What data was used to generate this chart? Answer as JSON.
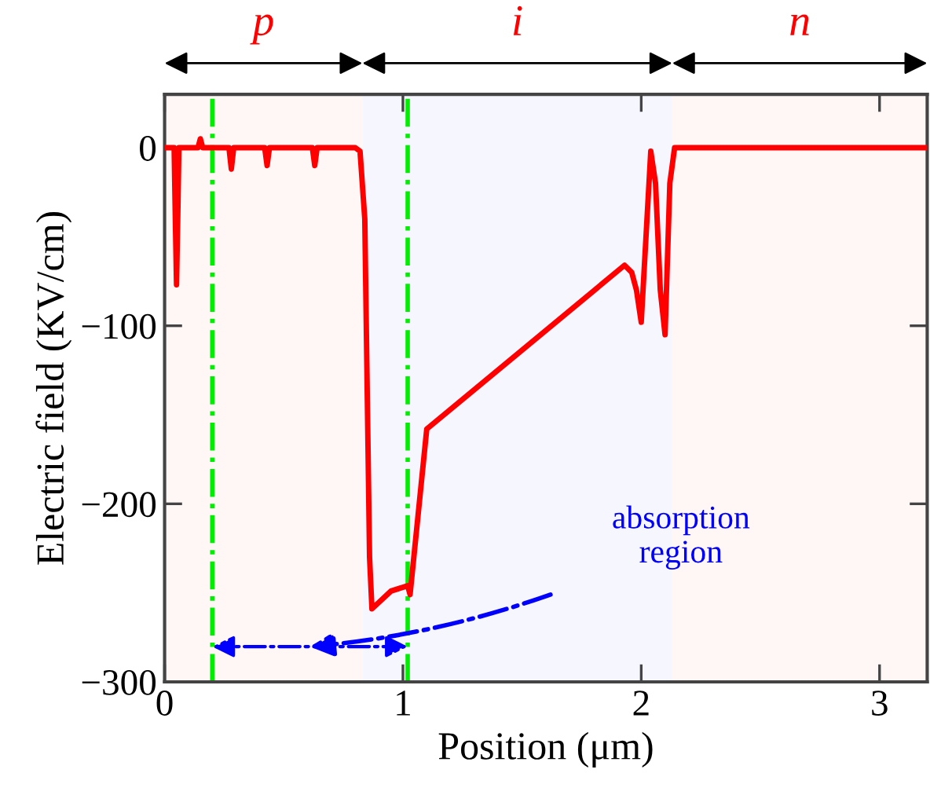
{
  "chart_data": {
    "type": "line",
    "xlabel": "Position (μm)",
    "ylabel": "Electric field (KV/cm)",
    "series": [
      {
        "color": "#ff0000",
        "x": [
          0,
          0.04,
          0.045,
          0.05,
          0.055,
          0.06,
          0.1,
          0.14,
          0.15,
          0.16,
          0.2,
          0.27,
          0.28,
          0.29,
          0.42,
          0.43,
          0.44,
          0.62,
          0.63,
          0.64,
          0.8,
          0.82,
          0.84,
          0.86,
          0.87,
          0.95,
          1.02,
          1.03,
          1.1,
          1.93,
          1.96,
          1.98,
          2.0,
          2.02,
          2.04,
          2.06,
          2.08,
          2.1,
          2.12,
          2.14,
          3.2
        ],
        "values": [
          0,
          0,
          -40,
          -77,
          -40,
          0,
          0,
          0,
          5,
          0,
          0,
          0,
          -12,
          0,
          0,
          -10,
          0,
          0,
          -10,
          0,
          0,
          -2,
          -40,
          -230,
          -259,
          -249,
          -246,
          -251,
          -158,
          -66,
          -70,
          -80,
          -98,
          -50,
          -2,
          -20,
          -80,
          -105,
          -20,
          0,
          0
        ]
      }
    ],
    "xlim": [
      0,
      3.2
    ],
    "ylim": [
      -300,
      30
    ],
    "xticks": [
      0,
      1,
      2,
      3
    ],
    "yticks": [
      {
        "value": -300,
        "label": "−300"
      },
      {
        "value": -200,
        "label": "−200"
      },
      {
        "value": -100,
        "label": "−100"
      },
      0
    ],
    "ref_lines": [
      {
        "axis": "x",
        "value": 0.2,
        "color": "#00ee00",
        "line_style": "dashdot"
      },
      {
        "axis": "x",
        "value": 1.02,
        "color": "#00ee00",
        "line_style": "dashdot"
      }
    ],
    "bands": [
      {
        "axis": "x",
        "from": 0,
        "to": 0.83,
        "label": "p"
      },
      {
        "axis": "x",
        "from": 0.83,
        "to": 2.13,
        "label": "i"
      },
      {
        "axis": "x",
        "from": 2.13,
        "to": 3.2,
        "label": "n"
      }
    ],
    "annotations": [
      "absorption\nregion"
    ],
    "grid": false,
    "legend": false,
    "line_style": "solid",
    "marker": "none"
  }
}
